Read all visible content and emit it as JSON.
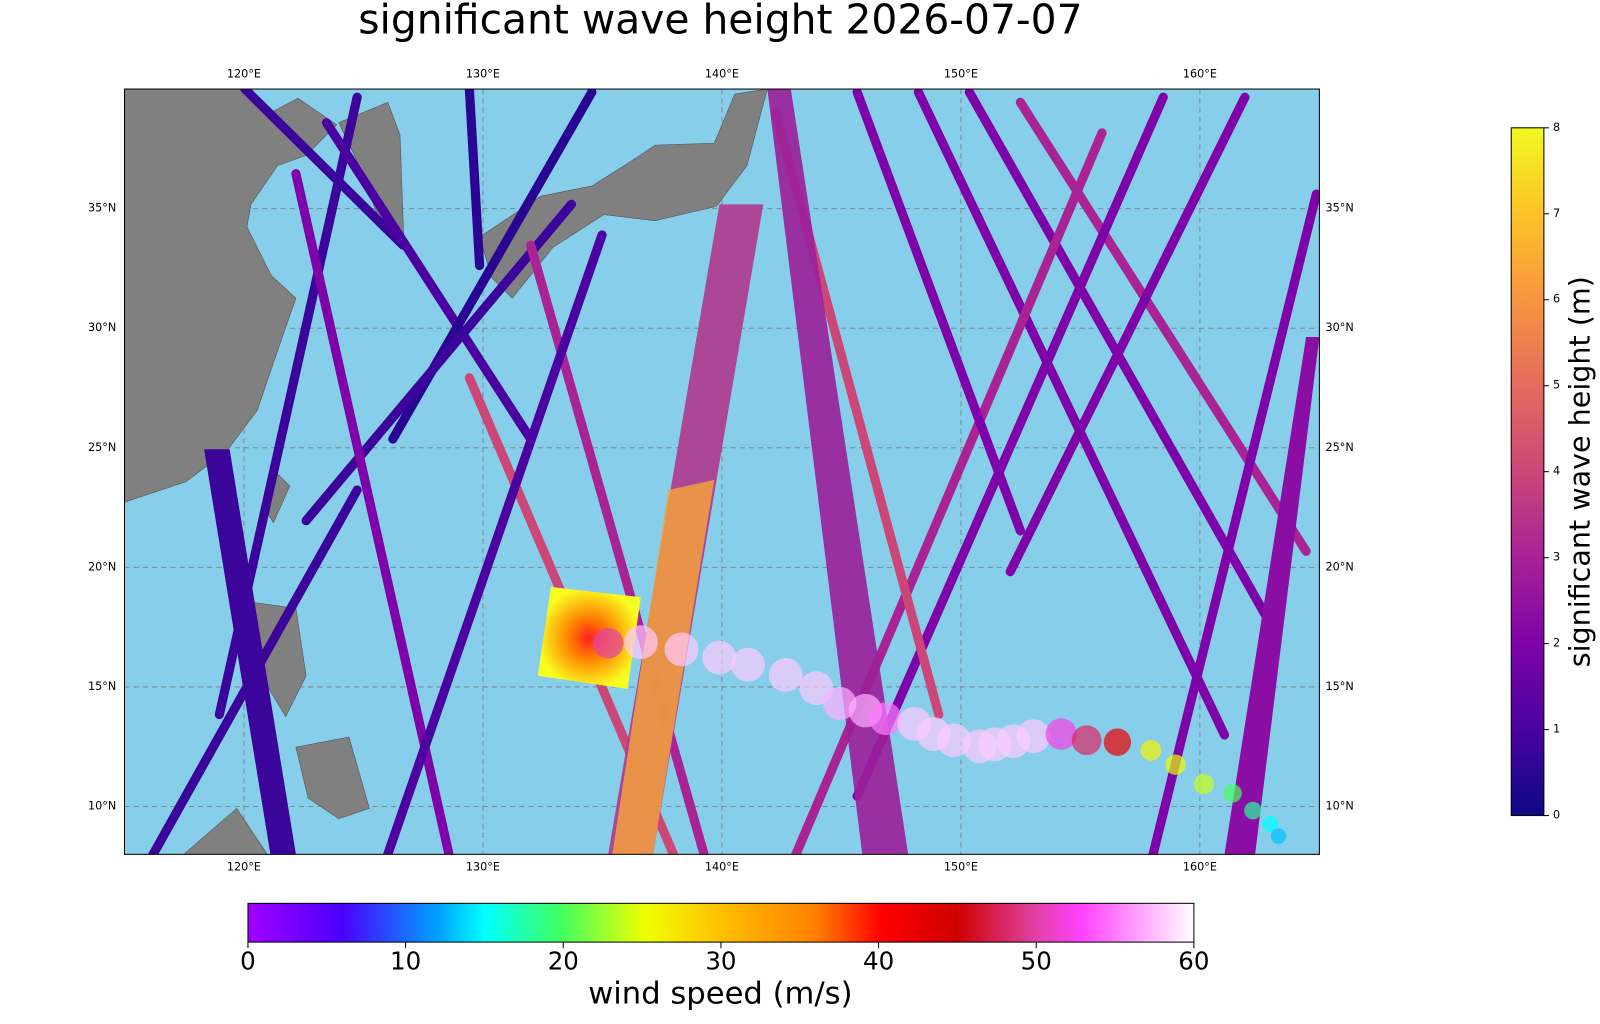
{
  "chart_data": {
    "type": "map",
    "title": "significant wave height 2026-07-07",
    "xlim": [
      115,
      165
    ],
    "ylim": [
      8,
      40
    ],
    "xticks": [
      {
        "value": 120,
        "label": "120°E"
      },
      {
        "value": 130,
        "label": "130°E"
      },
      {
        "value": 140,
        "label": "140°E"
      },
      {
        "value": 150,
        "label": "150°E"
      },
      {
        "value": 160,
        "label": "160°E"
      }
    ],
    "yticks": [
      {
        "value": 10,
        "label": "10°N"
      },
      {
        "value": 15,
        "label": "15°N"
      },
      {
        "value": 20,
        "label": "20°N"
      },
      {
        "value": 25,
        "label": "25°N"
      },
      {
        "value": 30,
        "label": "30°N"
      },
      {
        "value": 35,
        "label": "35°N"
      }
    ],
    "grid": true,
    "wave_colorbar": {
      "label": "significant wave height (m)",
      "lim": [
        0,
        8
      ],
      "ticks": [
        0,
        1,
        2,
        3,
        4,
        5,
        6,
        7,
        8
      ]
    },
    "wind_colorbar": {
      "label": "wind speed (m/s)",
      "lim": [
        0,
        60
      ],
      "ticks": [
        0,
        10,
        20,
        30,
        40,
        50,
        60
      ]
    },
    "typhoon_track": {
      "lon": [
        135.24,
        136.61,
        138.31,
        139.89,
        141.09,
        142.67,
        143.95,
        144.93,
        146.0,
        146.85,
        148.05,
        148.86,
        149.71,
        150.78,
        151.42,
        152.19,
        153.04,
        154.2,
        155.26,
        156.55,
        157.95,
        158.98,
        160.17,
        161.37,
        162.22,
        162.95,
        163.29
      ],
      "lat": [
        16.83,
        16.87,
        16.57,
        16.23,
        15.93,
        15.5,
        14.95,
        14.31,
        14.01,
        13.67,
        13.46,
        13.03,
        12.77,
        12.52,
        12.6,
        12.73,
        12.94,
        13.03,
        12.77,
        12.69,
        12.35,
        11.75,
        10.94,
        10.55,
        9.83,
        9.27,
        8.76
      ],
      "wind": [
        50,
        58,
        58,
        58,
        58,
        58,
        58,
        57,
        57,
        55,
        58,
        58,
        58,
        58,
        58,
        58,
        58,
        52,
        48,
        42,
        26,
        25,
        24,
        20,
        18,
        15,
        13
      ]
    }
  }
}
